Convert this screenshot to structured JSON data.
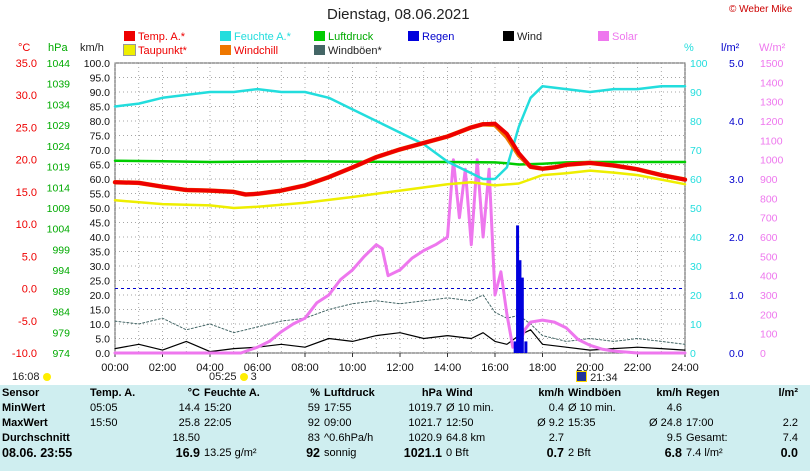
{
  "title": "Dienstag, 08.06.2021",
  "credit": "© Weber Mike",
  "colors": {
    "temp": "#ee0000",
    "taupunkt": "#eeee00",
    "feuchte": "#22dddd",
    "windchill": "#ee7700",
    "luftdruck": "#00cc00",
    "windboeen": "#446666",
    "regen": "#0000dd",
    "wind": "#000000",
    "solar": "#ee77ee",
    "grid": "#888888",
    "ref": "#0000cc",
    "statsbg": "#cfeef0"
  },
  "legend": [
    {
      "key": "temp",
      "label": "Temp. A.*"
    },
    {
      "key": "taupunkt",
      "label": "Taupunkt*"
    },
    {
      "key": "feuchte",
      "label": "Feuchte A.*"
    },
    {
      "key": "windchill",
      "label": "Windchill"
    },
    {
      "key": "luftdruck",
      "label": "Luftdruck"
    },
    {
      "key": "windboeen",
      "label": "Windböen*"
    },
    {
      "key": "regen",
      "label": "Regen"
    },
    {
      "key": "wind",
      "label": "Wind"
    },
    {
      "key": "solar",
      "label": "Solar"
    }
  ],
  "chart_data": {
    "type": "line",
    "title": "Dienstag, 08.06.2021",
    "xlabel": "",
    "x_ticks": [
      "00:00",
      "02:00",
      "04:00",
      "06:00",
      "08:00",
      "10:00",
      "12:00",
      "14:00",
      "16:00",
      "18:00",
      "20:00",
      "22:00",
      "24:00"
    ],
    "xlim": [
      0,
      24
    ],
    "axes": {
      "celsius": {
        "unit": "°C",
        "range": [
          -10,
          35
        ],
        "ticks": [
          "35.0",
          "30.0",
          "25.0",
          "20.0",
          "15.0",
          "10.0",
          "5.0",
          "0.0",
          "-5.0",
          "-10.0"
        ]
      },
      "hpa": {
        "unit": "hPa",
        "range": [
          974,
          1044
        ],
        "ticks": [
          "1044",
          "1039",
          "1034",
          "1029",
          "1024",
          "1019",
          "1014",
          "1009",
          "1004",
          "999",
          "994",
          "989",
          "984",
          "979",
          "974"
        ]
      },
      "kmh": {
        "unit": "km/h",
        "range": [
          0,
          100
        ],
        "ticks": [
          "100.0",
          "95.0",
          "90.0",
          "85.0",
          "80.0",
          "75.0",
          "70.0",
          "65.0",
          "60.0",
          "55.0",
          "50.0",
          "45.0",
          "40.0",
          "35.0",
          "30.0",
          "25.0",
          "20.0",
          "15.0",
          "10.0",
          "5.0",
          "0.0"
        ]
      },
      "percent": {
        "unit": "%",
        "range": [
          0,
          100
        ],
        "ticks": [
          "100",
          "90",
          "80",
          "70",
          "60",
          "50",
          "40",
          "30",
          "20",
          "10",
          "0"
        ]
      },
      "lm2": {
        "unit": "l/m²",
        "range": [
          0,
          5
        ],
        "ticks": [
          "5.0",
          "4.0",
          "3.0",
          "2.0",
          "1.0",
          "0.0"
        ]
      },
      "wm2": {
        "unit": "W/m²",
        "range": [
          0,
          1500
        ],
        "ticks": [
          "1500",
          "1400",
          "1300",
          "1200",
          "1100",
          "1000",
          "900",
          "800",
          "700",
          "600",
          "500",
          "400",
          "300",
          "200",
          "100",
          "0"
        ]
      }
    },
    "series": [
      {
        "name": "Temp. A.*",
        "axis": "celsius",
        "color_key": "temp",
        "x": [
          0,
          1,
          2,
          3,
          4,
          5,
          5.5,
          6,
          7,
          8,
          9,
          10,
          11,
          12,
          13,
          14,
          15,
          15.5,
          16,
          16.5,
          17,
          17.5,
          18,
          18.5,
          19,
          20,
          21,
          22,
          23,
          24
        ],
        "y": [
          16.5,
          16.4,
          15.8,
          15.3,
          15.2,
          15.0,
          14.6,
          14.7,
          15.2,
          16.0,
          17.3,
          18.8,
          20.4,
          21.6,
          22.6,
          23.6,
          25.0,
          25.5,
          25.6,
          24.0,
          21.0,
          18.9,
          18.6,
          18.8,
          19.2,
          19.5,
          19.1,
          18.5,
          17.6,
          16.9
        ]
      },
      {
        "name": "Windchill",
        "axis": "celsius",
        "color_key": "windchill",
        "x": [
          0,
          1,
          2,
          3,
          4,
          5,
          5.5,
          6,
          7,
          8,
          9,
          10,
          11,
          12,
          13,
          14,
          15,
          15.5,
          16,
          16.5,
          17,
          17.5,
          18,
          18.5,
          19,
          20,
          21,
          22,
          23,
          24
        ],
        "y": [
          16.5,
          16.4,
          15.8,
          15.3,
          15.2,
          15.0,
          14.6,
          14.7,
          15.2,
          16.0,
          17.3,
          18.8,
          20.4,
          21.6,
          22.6,
          23.6,
          25.0,
          25.5,
          25.4,
          23.5,
          20.7,
          18.9,
          18.6,
          18.8,
          19.2,
          19.5,
          19.1,
          18.5,
          17.6,
          16.9
        ]
      },
      {
        "name": "Taupunkt*",
        "axis": "celsius",
        "color_key": "taupunkt",
        "x": [
          0,
          2,
          4,
          5,
          6,
          8,
          10,
          12,
          14,
          15,
          16,
          17,
          18,
          19,
          20,
          21,
          22,
          23,
          24
        ],
        "y": [
          13.7,
          13.1,
          12.9,
          12.5,
          12.7,
          13.3,
          14.2,
          15.2,
          16.2,
          16.5,
          16.0,
          16.3,
          17.6,
          17.9,
          18.3,
          18.0,
          17.6,
          16.9,
          16.2
        ]
      },
      {
        "name": "Feuchte A.*",
        "axis": "percent",
        "color_key": "feuchte",
        "x": [
          0,
          1,
          2,
          3,
          4,
          5,
          6,
          7,
          8,
          9,
          10,
          11,
          12,
          13,
          14,
          15,
          15.5,
          16,
          16.5,
          17,
          17.5,
          18,
          19,
          20,
          21,
          22,
          23,
          24
        ],
        "y": [
          85,
          86,
          88,
          89,
          90,
          90,
          91,
          90,
          90,
          88,
          84,
          80,
          76,
          72,
          66,
          62,
          60,
          60,
          64,
          78,
          88,
          92,
          91,
          90,
          91,
          91,
          92,
          92
        ]
      },
      {
        "name": "Luftdruck",
        "axis": "hpa",
        "color_key": "luftdruck",
        "x": [
          0,
          2,
          4,
          6,
          8,
          10,
          12,
          14,
          16,
          16.5,
          17,
          18,
          19,
          20,
          22,
          24
        ],
        "y": [
          1020.4,
          1020.3,
          1020.1,
          1020.2,
          1020.3,
          1020.2,
          1020.1,
          1020.1,
          1020.0,
          1019.8,
          1019.5,
          1019.7,
          1020.0,
          1020.1,
          1020.1,
          1020.1
        ]
      },
      {
        "name": "Regen",
        "axis": "lm2",
        "color_key": "regen",
        "x": [
          16.85,
          16.95,
          17.05,
          17.15,
          17.3
        ],
        "y": [
          0.2,
          2.2,
          1.6,
          1.3,
          0.2
        ]
      },
      {
        "name": "Wind",
        "axis": "kmh",
        "color_key": "wind",
        "x": [
          0,
          1,
          2,
          3,
          4,
          5,
          6,
          7,
          8,
          9,
          10,
          11,
          12,
          13,
          14,
          15,
          15.5,
          16,
          16.5,
          17,
          17.5,
          18,
          19,
          20,
          21,
          22,
          23,
          24
        ],
        "y": [
          1.5,
          3,
          1,
          4,
          0.5,
          1.5,
          2,
          3,
          2,
          5,
          4,
          6,
          7,
          5,
          6,
          5,
          7,
          4,
          3,
          6,
          8,
          3,
          2,
          1,
          1.5,
          2,
          1.5,
          1
        ]
      },
      {
        "name": "Windböen*",
        "axis": "kmh",
        "color_key": "windboeen",
        "x": [
          0,
          1,
          2,
          3,
          4,
          5,
          6,
          7,
          8,
          9,
          10,
          11,
          12,
          13,
          14,
          15,
          15.5,
          16,
          16.5,
          17,
          17.5,
          18,
          19,
          20,
          21,
          22,
          23,
          24
        ],
        "y": [
          11,
          10,
          12,
          8,
          10,
          7,
          9,
          11,
          12,
          15,
          17,
          18,
          17,
          18,
          19,
          18,
          20,
          14,
          12,
          13,
          10,
          6,
          4,
          5,
          4,
          5,
          4,
          3
        ]
      },
      {
        "name": "Solar",
        "axis": "wm2",
        "color_key": "solar",
        "x": [
          0,
          5.3,
          6,
          6.5,
          7,
          7.5,
          8,
          8.5,
          9,
          9.5,
          10,
          10.5,
          11,
          11.25,
          11.5,
          12,
          12.5,
          13,
          13.5,
          14,
          14.25,
          14.5,
          14.75,
          15,
          15.25,
          15.5,
          15.75,
          16,
          16.25,
          16.5,
          16.75,
          17,
          17.25,
          17.5,
          18,
          18.5,
          19,
          19.5,
          20,
          20.5,
          21,
          21.5,
          22,
          24
        ],
        "y": [
          0,
          0,
          30,
          60,
          110,
          150,
          180,
          260,
          300,
          380,
          430,
          500,
          560,
          540,
          400,
          430,
          490,
          530,
          560,
          600,
          1000,
          700,
          950,
          560,
          1000,
          600,
          950,
          300,
          420,
          200,
          30,
          40,
          120,
          160,
          170,
          160,
          130,
          70,
          40,
          20,
          10,
          5,
          0,
          0
        ]
      }
    ]
  },
  "markers": [
    {
      "label": "16:08",
      "kind": "sunset-prev"
    },
    {
      "label": "05:25",
      "kind": "sunrise"
    },
    {
      "label": "3",
      "kind": "moon-phase"
    },
    {
      "label": "21:34",
      "kind": "sunset"
    }
  ],
  "stats": {
    "header": [
      "Sensor",
      "Temp. A.",
      "°C",
      "Feuchte A.",
      "%",
      "Luftdruck",
      "hPa",
      "Wind",
      "km/h",
      "Windböen",
      "km/h",
      "Regen",
      "l/m²"
    ],
    "rows": [
      [
        "MinWert",
        "05:05",
        "14.4",
        "15:20",
        "59",
        "17:55",
        "1019.7",
        "Ø 10 min.",
        "0.4",
        "Ø 10 min.",
        "4.6",
        "",
        ""
      ],
      [
        "MaxWert",
        "15:50",
        "25.8",
        "22:05",
        "92",
        "09:00",
        "1021.7",
        "12:50",
        "Ø 9.2",
        "15:35",
        "Ø 24.8",
        "17:00",
        "2.2"
      ],
      [
        "Durchschnitt",
        "",
        "18.50",
        "",
        "83",
        "^0.6hPa/h",
        "1020.9",
        "64.8 km",
        "2.7",
        "",
        "9.5",
        "Gesamt:",
        "7.4"
      ],
      [
        "08.06. 23:55",
        "",
        "16.9",
        "13.25 g/m²",
        "92",
        "sonnig",
        "1021.1",
        "0 Bft",
        "0.7",
        "2 Bft",
        "6.8",
        "7.4 l/m²",
        "0.0"
      ]
    ]
  }
}
